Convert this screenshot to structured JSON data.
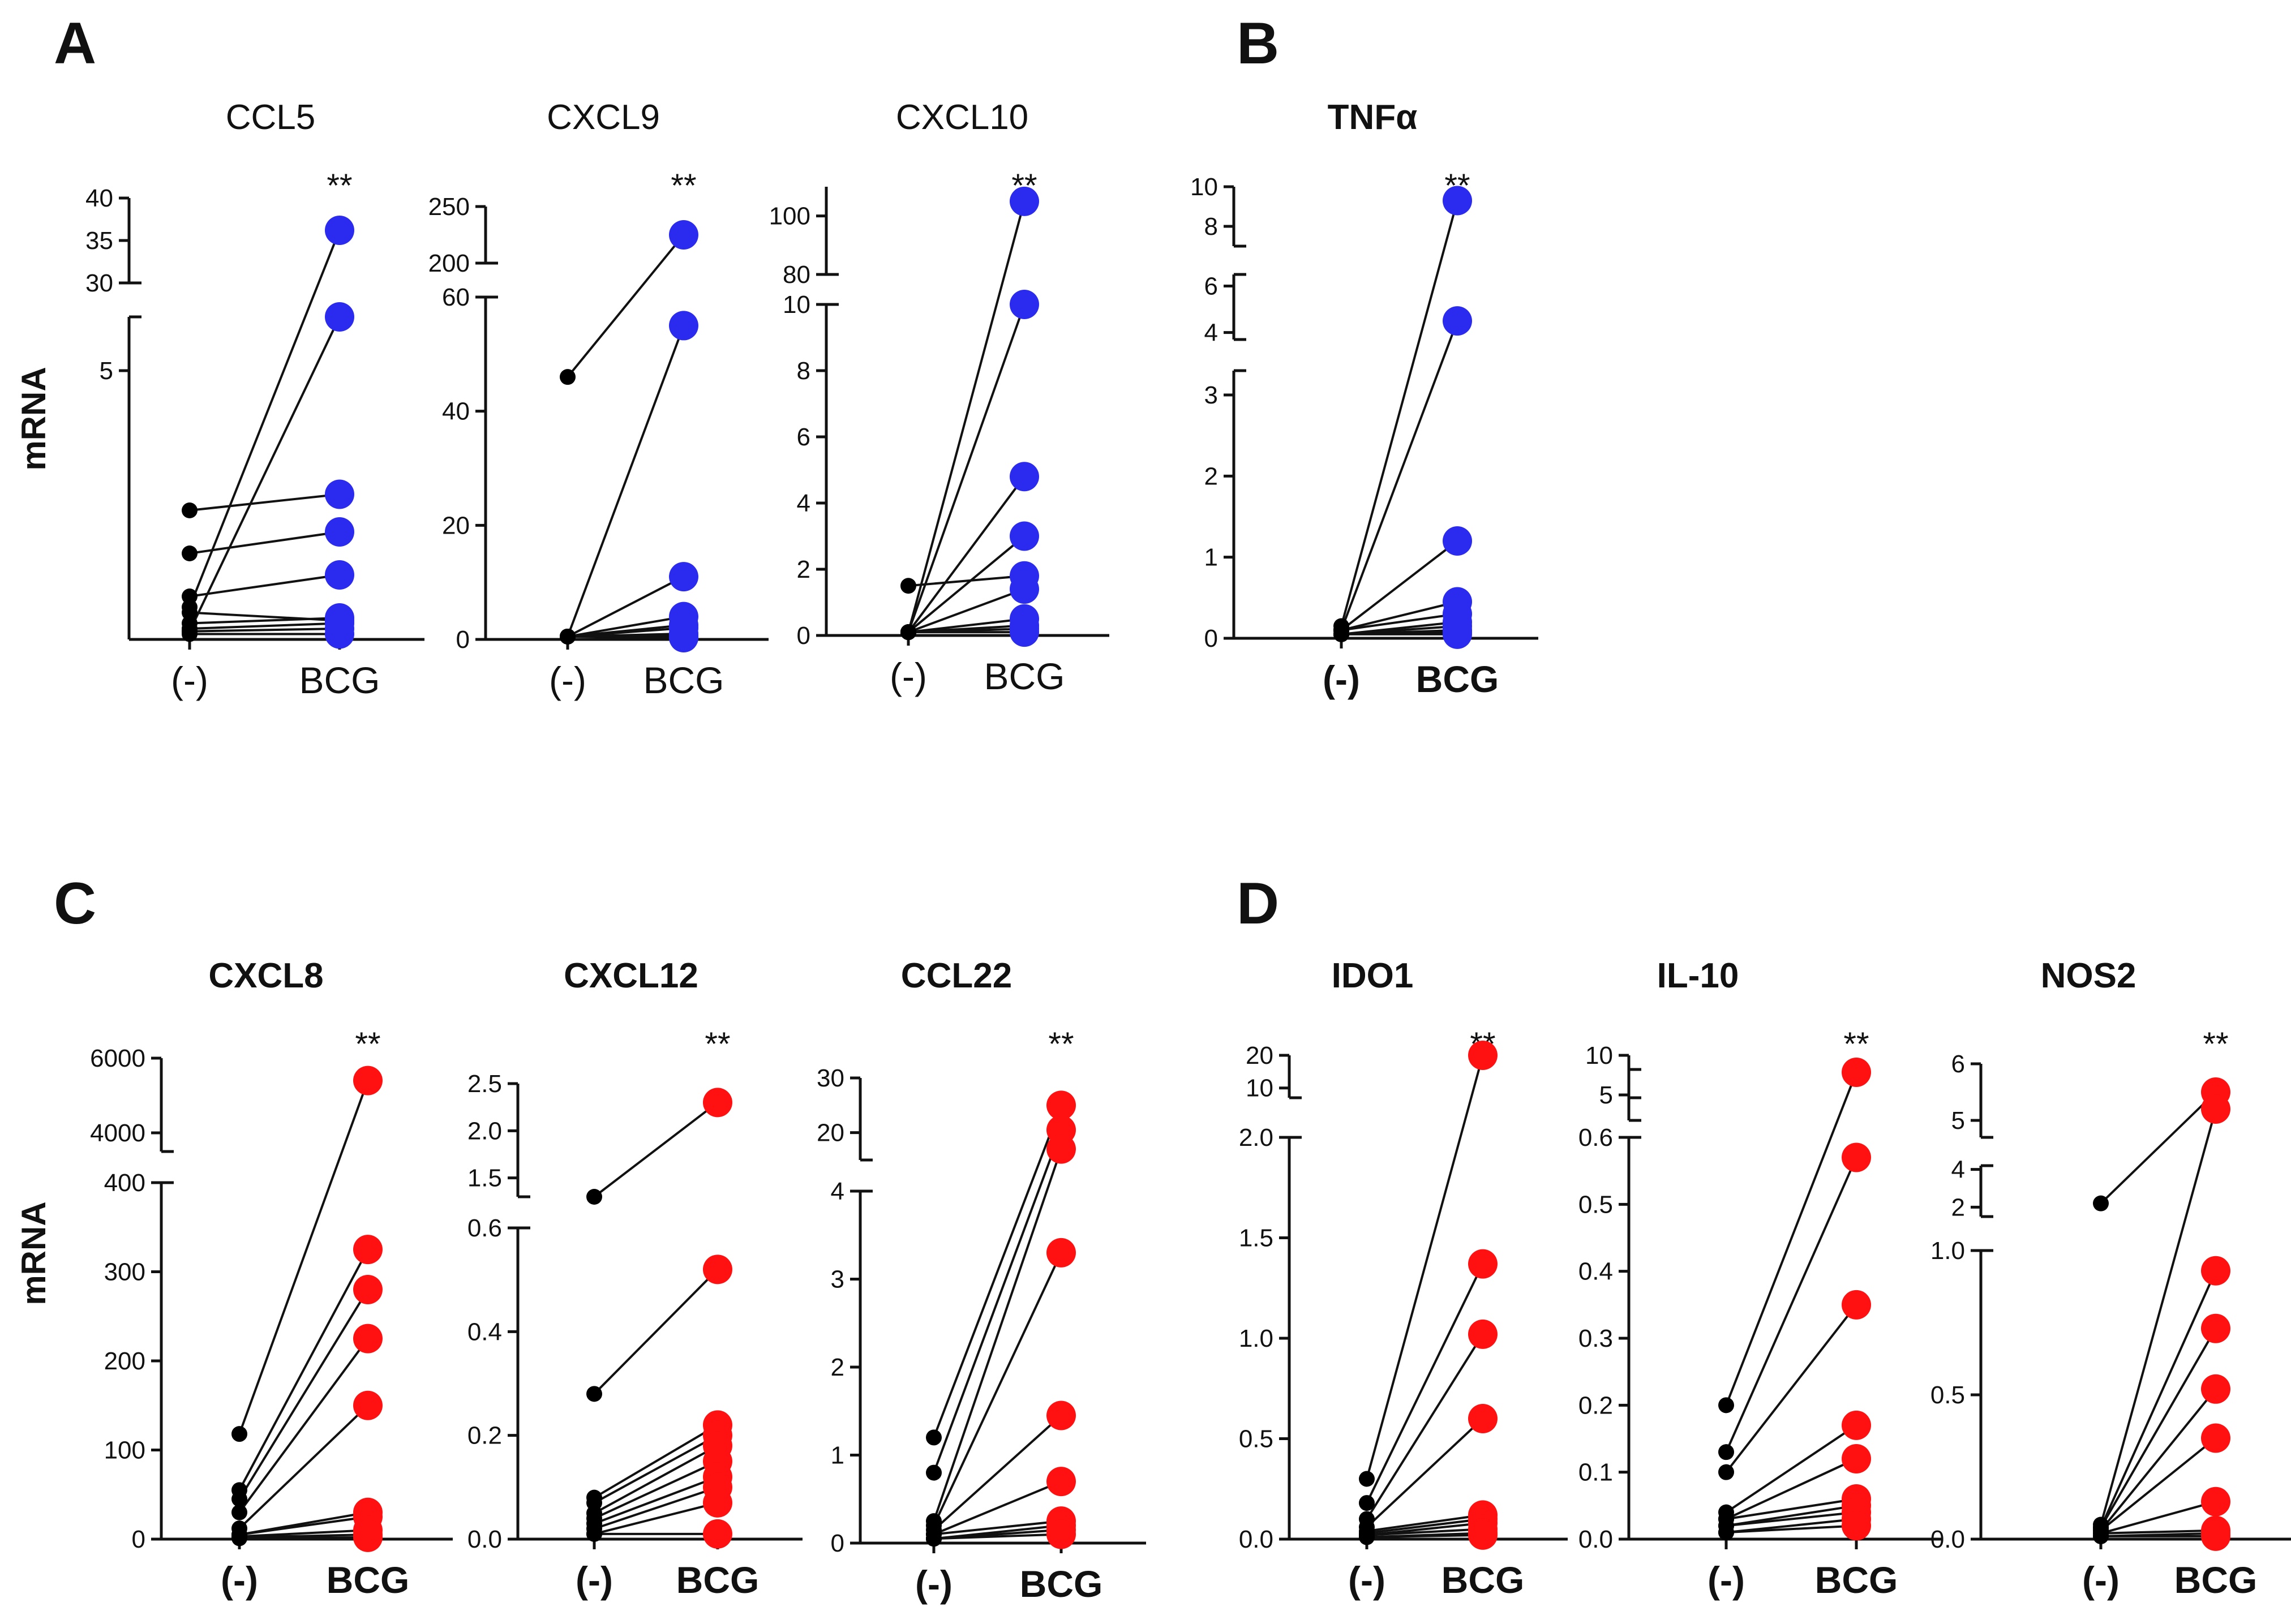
{
  "panels": [
    {
      "letter": "A"
    },
    {
      "letter": "B"
    },
    {
      "letter": "C"
    },
    {
      "letter": "D"
    }
  ],
  "colors": {
    "control": "#000000",
    "blue": "#2b2bf0",
    "red": "#ff1111"
  },
  "y_label": "mRNA",
  "chart_data": [
    {
      "panel": "A",
      "type": "paired-scatter",
      "title": "CCL5",
      "categories": [
        "(-)",
        "BCG"
      ],
      "ylabel": "mRNA",
      "significance": "**",
      "axis_segments": [
        {
          "range": [
            0,
            6.0
          ],
          "ticks": [
            {
              "v": 5,
              "label": "5"
            }
          ]
        },
        {
          "range": [
            30,
            40
          ],
          "ticks": [
            {
              "v": 30,
              "label": "30"
            },
            {
              "v": 35,
              "label": "35"
            },
            {
              "v": 40,
              "label": "40"
            }
          ]
        }
      ],
      "series": [
        {
          "name": "(-)",
          "color": "#000000"
        },
        {
          "name": "BCG",
          "color": "#2b2bf0"
        }
      ],
      "pairs": [
        [
          0.1,
          0.1
        ],
        [
          0.15,
          0.2
        ],
        [
          0.2,
          0.3
        ],
        [
          0.3,
          0.4
        ],
        [
          0.5,
          0.35
        ],
        [
          0.8,
          1.2
        ],
        [
          1.6,
          2.0
        ],
        [
          2.4,
          2.7
        ],
        [
          0.6,
          36.2
        ],
        [
          0.15,
          6.0
        ]
      ]
    },
    {
      "panel": "A",
      "type": "paired-scatter",
      "title": "CXCL9",
      "categories": [
        "(-)",
        "BCG"
      ],
      "ylabel": "",
      "significance": "**",
      "axis_segments": [
        {
          "range": [
            0,
            60
          ],
          "ticks": [
            {
              "v": 0,
              "label": "0"
            },
            {
              "v": 20,
              "label": "20"
            },
            {
              "v": 40,
              "label": "40"
            },
            {
              "v": 60,
              "label": "60"
            }
          ]
        },
        {
          "range": [
            200,
            250
          ],
          "ticks": [
            {
              "v": 200,
              "label": "200"
            },
            {
              "v": 250,
              "label": "250"
            }
          ]
        }
      ],
      "series": [
        {
          "name": "(-)",
          "color": "#000000"
        },
        {
          "name": "BCG",
          "color": "#2b2bf0"
        }
      ],
      "pairs": [
        [
          46,
          225
        ],
        [
          0.5,
          55
        ],
        [
          0.5,
          11
        ],
        [
          0.5,
          4
        ],
        [
          0.5,
          2
        ],
        [
          0.5,
          1
        ],
        [
          0.5,
          0.5
        ],
        [
          0.5,
          0.3
        ],
        [
          0.5,
          2.5
        ],
        [
          0.5,
          0.8
        ]
      ]
    },
    {
      "panel": "A",
      "type": "paired-scatter",
      "title": "CXCL10",
      "categories": [
        "(-)",
        "BCG"
      ],
      "ylabel": "",
      "significance": "**",
      "axis_segments": [
        {
          "range": [
            0,
            10
          ],
          "ticks": [
            {
              "v": 0,
              "label": "0"
            },
            {
              "v": 2,
              "label": "2"
            },
            {
              "v": 4,
              "label": "4"
            },
            {
              "v": 6,
              "label": "6"
            },
            {
              "v": 8,
              "label": "8"
            },
            {
              "v": 10,
              "label": "10"
            }
          ]
        },
        {
          "range": [
            80,
            110
          ],
          "ticks": [
            {
              "v": 80,
              "label": "80"
            },
            {
              "v": 100,
              "label": "100"
            }
          ]
        }
      ],
      "series": [
        {
          "name": "(-)",
          "color": "#000000"
        },
        {
          "name": "BCG",
          "color": "#2b2bf0"
        }
      ],
      "pairs": [
        [
          1.5,
          1.8
        ],
        [
          0.1,
          105
        ],
        [
          0.1,
          10
        ],
        [
          0.1,
          4.8
        ],
        [
          0.1,
          3.0
        ],
        [
          0.1,
          1.4
        ],
        [
          0.1,
          0.5
        ],
        [
          0.1,
          0.3
        ],
        [
          0.1,
          0.1
        ],
        [
          0.1,
          0.2
        ]
      ]
    },
    {
      "panel": "B",
      "type": "paired-scatter",
      "title": "TNFα",
      "categories": [
        "(-)",
        "BCG"
      ],
      "ylabel": "",
      "significance": "**",
      "axis_segments": [
        {
          "range": [
            0,
            3.3
          ],
          "ticks": [
            {
              "v": 0,
              "label": "0"
            },
            {
              "v": 1,
              "label": "1"
            },
            {
              "v": 2,
              "label": "2"
            },
            {
              "v": 3,
              "label": "3"
            }
          ]
        },
        {
          "range": [
            3.7,
            6.5
          ],
          "ticks": [
            {
              "v": 4,
              "label": "4"
            },
            {
              "v": 6,
              "label": "6"
            }
          ]
        },
        {
          "range": [
            7.0,
            10
          ],
          "ticks": [
            {
              "v": 8,
              "label": "8"
            },
            {
              "v": 10,
              "label": "10"
            }
          ]
        }
      ],
      "series": [
        {
          "name": "(-)",
          "color": "#000000"
        },
        {
          "name": "BCG",
          "color": "#2b2bf0"
        }
      ],
      "pairs": [
        [
          0.15,
          9.3
        ],
        [
          0.1,
          4.5
        ],
        [
          0.1,
          1.2
        ],
        [
          0.1,
          0.45
        ],
        [
          0.1,
          0.3
        ],
        [
          0.05,
          0.2
        ],
        [
          0.05,
          0.15
        ],
        [
          0.05,
          0.1
        ],
        [
          0.05,
          0.08
        ],
        [
          0.05,
          0.05
        ]
      ]
    },
    {
      "panel": "C",
      "type": "paired-scatter",
      "title": "CXCL8",
      "categories": [
        "(-)",
        "BCG"
      ],
      "ylabel": "mRNA",
      "significance": "**",
      "axis_segments": [
        {
          "range": [
            0,
            400
          ],
          "ticks": [
            {
              "v": 0,
              "label": "0"
            },
            {
              "v": 100,
              "label": "100"
            },
            {
              "v": 200,
              "label": "200"
            },
            {
              "v": 300,
              "label": "300"
            },
            {
              "v": 400,
              "label": "400"
            }
          ]
        },
        {
          "range": [
            3500,
            6000
          ],
          "ticks": [
            {
              "v": 4000,
              "label": "4000"
            },
            {
              "v": 6000,
              "label": "6000"
            }
          ]
        }
      ],
      "series": [
        {
          "name": "(-)",
          "color": "#000000"
        },
        {
          "name": "BCG",
          "color": "#ff1111"
        }
      ],
      "pairs": [
        [
          118,
          5400
        ],
        [
          55,
          325
        ],
        [
          45,
          280
        ],
        [
          30,
          225
        ],
        [
          12,
          150
        ],
        [
          5,
          30
        ],
        [
          5,
          25
        ],
        [
          3,
          10
        ],
        [
          2,
          5
        ],
        [
          1,
          2
        ]
      ]
    },
    {
      "panel": "C",
      "type": "paired-scatter",
      "title": "CXCL12",
      "categories": [
        "(-)",
        "BCG"
      ],
      "ylabel": "",
      "significance": "**",
      "axis_segments": [
        {
          "range": [
            0,
            0.6
          ],
          "ticks": [
            {
              "v": 0.0,
              "label": "0.0"
            },
            {
              "v": 0.2,
              "label": "0.2"
            },
            {
              "v": 0.4,
              "label": "0.4"
            },
            {
              "v": 0.6,
              "label": "0.6"
            }
          ]
        },
        {
          "range": [
            1.3,
            2.5
          ],
          "ticks": [
            {
              "v": 1.5,
              "label": "1.5"
            },
            {
              "v": 2.0,
              "label": "2.0"
            },
            {
              "v": 2.5,
              "label": "2.5"
            }
          ]
        }
      ],
      "series": [
        {
          "name": "(-)",
          "color": "#000000"
        },
        {
          "name": "BCG",
          "color": "#ff1111"
        }
      ],
      "pairs": [
        [
          1.3,
          2.3
        ],
        [
          0.28,
          0.52
        ],
        [
          0.08,
          0.22
        ],
        [
          0.07,
          0.2
        ],
        [
          0.05,
          0.18
        ],
        [
          0.04,
          0.15
        ],
        [
          0.03,
          0.12
        ],
        [
          0.02,
          0.1
        ],
        [
          0.01,
          0.07
        ],
        [
          0.01,
          0.01
        ]
      ]
    },
    {
      "panel": "C",
      "type": "paired-scatter",
      "title": "CCL22",
      "categories": [
        "(-)",
        "BCG"
      ],
      "ylabel": "",
      "significance": "**",
      "axis_segments": [
        {
          "range": [
            0,
            4
          ],
          "ticks": [
            {
              "v": 0,
              "label": "0"
            },
            {
              "v": 1,
              "label": "1"
            },
            {
              "v": 2,
              "label": "2"
            },
            {
              "v": 3,
              "label": "3"
            },
            {
              "v": 4,
              "label": "4"
            }
          ]
        },
        {
          "range": [
            15,
            30
          ],
          "ticks": [
            {
              "v": 20,
              "label": "20"
            },
            {
              "v": 30,
              "label": "30"
            }
          ]
        }
      ],
      "series": [
        {
          "name": "(-)",
          "color": "#000000"
        },
        {
          "name": "BCG",
          "color": "#ff1111"
        }
      ],
      "pairs": [
        [
          1.2,
          25
        ],
        [
          0.8,
          20.5
        ],
        [
          0.25,
          17
        ],
        [
          0.2,
          3.3
        ],
        [
          0.15,
          1.45
        ],
        [
          0.1,
          0.7
        ],
        [
          0.1,
          0.25
        ],
        [
          0.05,
          0.2
        ],
        [
          0.05,
          0.15
        ],
        [
          0.05,
          0.1
        ]
      ]
    },
    {
      "panel": "D",
      "type": "paired-scatter",
      "title": "IDO1",
      "categories": [
        "(-)",
        "BCG"
      ],
      "ylabel": "",
      "significance": "**",
      "axis_segments": [
        {
          "range": [
            0,
            2.0
          ],
          "ticks": [
            {
              "v": 0.0,
              "label": "0.0"
            },
            {
              "v": 0.5,
              "label": "0.5"
            },
            {
              "v": 1.0,
              "label": "1.0"
            },
            {
              "v": 1.5,
              "label": "1.5"
            },
            {
              "v": 2.0,
              "label": "2.0"
            }
          ]
        },
        {
          "range": [
            7,
            20
          ],
          "ticks": [
            {
              "v": 10,
              "label": "10"
            },
            {
              "v": 20,
              "label": "20"
            }
          ]
        }
      ],
      "series": [
        {
          "name": "(-)",
          "color": "#000000"
        },
        {
          "name": "BCG",
          "color": "#ff1111"
        }
      ],
      "pairs": [
        [
          0.3,
          20
        ],
        [
          0.18,
          1.37
        ],
        [
          0.1,
          1.02
        ],
        [
          0.06,
          0.6
        ],
        [
          0.04,
          0.12
        ],
        [
          0.03,
          0.1
        ],
        [
          0.02,
          0.08
        ],
        [
          0.02,
          0.05
        ],
        [
          0.01,
          0.03
        ],
        [
          0.01,
          0.02
        ]
      ]
    },
    {
      "panel": "D",
      "type": "paired-scatter",
      "title": "IL-10",
      "categories": [
        "(-)",
        "BCG"
      ],
      "ylabel": "",
      "significance": "**",
      "axis_segments": [
        {
          "range": [
            0,
            0.6
          ],
          "ticks": [
            {
              "v": 0.0,
              "label": "0.0"
            },
            {
              "v": 0.1,
              "label": "0.1"
            },
            {
              "v": 0.2,
              "label": "0.2"
            },
            {
              "v": 0.3,
              "label": "0.3"
            },
            {
              "v": 0.4,
              "label": "0.4"
            },
            {
              "v": 0.5,
              "label": "0.5"
            },
            {
              "v": 0.6,
              "label": "0.6"
            }
          ]
        },
        {
          "range": [
            3.7,
            6.3
          ],
          "ticks": [
            {
              "v": 5,
              "label": "5"
            }
          ]
        },
        {
          "range": [
            7.5,
            10
          ],
          "ticks": [
            {
              "v": 10,
              "label": "10"
            }
          ]
        }
      ],
      "series": [
        {
          "name": "(-)",
          "color": "#000000"
        },
        {
          "name": "BCG",
          "color": "#ff1111"
        }
      ],
      "pairs": [
        [
          0.2,
          9.0
        ],
        [
          0.13,
          0.57
        ],
        [
          0.1,
          0.35
        ],
        [
          0.04,
          0.17
        ],
        [
          0.03,
          0.12
        ],
        [
          0.03,
          0.06
        ],
        [
          0.02,
          0.05
        ],
        [
          0.02,
          0.04
        ],
        [
          0.01,
          0.03
        ],
        [
          0.01,
          0.02
        ]
      ]
    },
    {
      "panel": "D",
      "type": "paired-scatter",
      "title": "NOS2",
      "categories": [
        "(-)",
        "BCG"
      ],
      "ylabel": "",
      "significance": "**",
      "axis_segments": [
        {
          "range": [
            0,
            1.0
          ],
          "ticks": [
            {
              "v": 0.0,
              "label": "0.0"
            },
            {
              "v": 0.5,
              "label": "0.5"
            },
            {
              "v": 1.0,
              "label": "1.0"
            }
          ]
        },
        {
          "range": [
            1.5,
            4.2
          ],
          "ticks": [
            {
              "v": 2,
              "label": "2"
            },
            {
              "v": 4,
              "label": "4"
            }
          ]
        },
        {
          "range": [
            4.7,
            6
          ],
          "ticks": [
            {
              "v": 5,
              "label": "5"
            },
            {
              "v": 6,
              "label": "6"
            }
          ]
        }
      ],
      "series": [
        {
          "name": "(-)",
          "color": "#000000"
        },
        {
          "name": "BCG",
          "color": "#ff1111"
        }
      ],
      "pairs": [
        [
          2.2,
          5.5
        ],
        [
          0.05,
          5.2
        ],
        [
          0.04,
          0.93
        ],
        [
          0.04,
          0.73
        ],
        [
          0.03,
          0.52
        ],
        [
          0.03,
          0.35
        ],
        [
          0.02,
          0.13
        ],
        [
          0.02,
          0.03
        ],
        [
          0.01,
          0.01
        ],
        [
          0.01,
          0.02
        ]
      ]
    }
  ]
}
